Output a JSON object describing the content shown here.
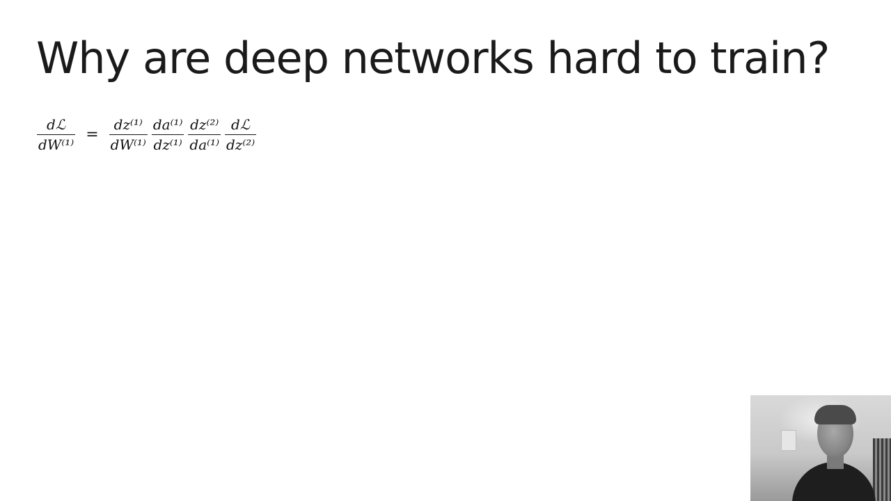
{
  "slide": {
    "title": "Why are deep networks hard to train?"
  },
  "equation": {
    "lhs": {
      "numerator": "dℒ",
      "denominator": "dW⁽¹⁾"
    },
    "equals": "=",
    "rhs": [
      {
        "numerator": "dz⁽¹⁾",
        "denominator": "dW⁽¹⁾"
      },
      {
        "numerator": "da⁽¹⁾",
        "denominator": "dz⁽¹⁾"
      },
      {
        "numerator": "dz⁽²⁾",
        "denominator": "da⁽¹⁾"
      },
      {
        "numerator": "dℒ",
        "denominator": "dz⁽²⁾"
      }
    ]
  },
  "webcam": {
    "background_color": "#d0d0d0"
  }
}
